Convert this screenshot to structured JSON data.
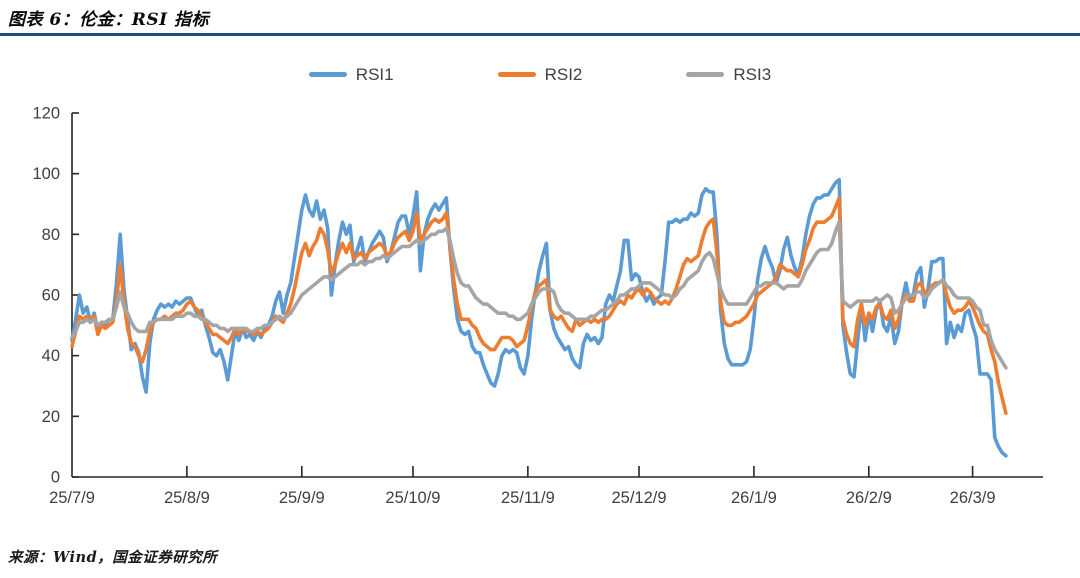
{
  "page": {
    "background": "#ffffff"
  },
  "header": {
    "title": "图表 6：伦金：RSI 指标",
    "divider_color": "#1F4E79"
  },
  "footer": {
    "source": "来源：Wind，国金证券研究所"
  },
  "chart_data": {
    "type": "line",
    "title": "图表 6：伦金：RSI 指标",
    "legend_position": "top",
    "grid": false,
    "axis_color": "#262626",
    "tick_label_color": "#404040",
    "x_axis": {
      "kind": "date-category",
      "tick_labels": [
        "25/7/9",
        "25/8/9",
        "25/9/9",
        "25/10/9",
        "25/11/9",
        "25/12/9",
        "26/1/9",
        "26/2/9",
        "26/3/9"
      ],
      "tick_days": [
        0,
        31,
        62,
        92,
        123,
        153,
        184,
        215,
        243
      ],
      "day_range": [
        0,
        262
      ]
    },
    "y_axis": {
      "min": 0,
      "max": 120,
      "ticks": [
        0,
        20,
        40,
        60,
        80,
        100,
        120
      ]
    },
    "series": [
      {
        "name": "RSI1",
        "color": "#5B9BD5",
        "values": [
          45,
          52,
          60,
          54,
          56,
          51,
          54,
          48,
          51,
          50,
          52,
          52,
          64,
          80,
          62,
          52,
          42,
          44,
          41,
          33,
          28,
          44,
          52,
          55,
          57,
          56,
          57,
          56,
          58,
          57,
          58,
          59,
          59,
          56,
          53,
          55,
          50,
          46,
          41,
          40,
          42,
          38,
          32,
          40,
          48,
          45,
          49,
          46,
          47,
          45,
          48,
          46,
          49,
          50,
          53,
          58,
          61,
          54,
          60,
          64,
          72,
          80,
          88,
          93,
          88,
          86,
          91,
          85,
          88,
          82,
          60,
          70,
          78,
          84,
          80,
          83,
          71,
          75,
          79,
          71,
          74,
          77,
          79,
          81,
          79,
          71,
          74,
          79,
          84,
          86,
          86,
          80,
          86,
          94,
          68,
          80,
          85,
          88,
          90,
          88,
          90,
          92,
          75,
          62,
          52,
          48,
          47,
          48,
          43,
          41,
          41,
          37,
          34,
          31,
          30,
          34,
          40,
          42,
          41,
          42,
          41,
          36,
          34,
          40,
          52,
          61,
          68,
          73,
          77,
          55,
          49,
          46,
          44,
          42,
          43,
          39,
          37,
          36,
          44,
          47,
          45,
          46,
          44,
          46,
          57,
          60,
          58,
          63,
          68,
          78,
          78,
          65,
          67,
          66,
          61,
          58,
          60,
          57,
          59,
          60,
          71,
          84,
          84,
          85,
          84,
          85,
          85,
          87,
          86,
          87,
          93,
          95,
          94,
          94,
          80,
          55,
          44,
          39,
          37,
          37,
          37,
          37,
          38,
          42,
          52,
          65,
          72,
          76,
          72,
          69,
          64,
          68,
          75,
          79,
          73,
          69,
          67,
          72,
          80,
          86,
          90,
          92,
          92,
          93,
          93,
          95,
          97,
          98,
          50,
          41,
          34,
          33,
          45,
          57,
          45,
          54,
          48,
          55,
          58,
          50,
          48,
          53,
          44,
          48,
          58,
          64,
          58,
          60,
          67,
          69,
          56,
          62,
          71,
          71,
          72,
          72,
          44,
          51,
          46,
          50,
          48,
          54,
          55,
          50,
          46,
          34,
          34,
          34,
          32,
          13,
          10,
          8,
          7
        ]
      },
      {
        "name": "RSI2",
        "color": "#ED7D31",
        "values": [
          43,
          48,
          53,
          52,
          53,
          52,
          53,
          47,
          50,
          49,
          50,
          51,
          58,
          70,
          58,
          49,
          44,
          43,
          40,
          38,
          42,
          48,
          51,
          52,
          52,
          53,
          52,
          53,
          54,
          54,
          55,
          57,
          58,
          56,
          55,
          53,
          51,
          49,
          47,
          47,
          46,
          45,
          44,
          46,
          49,
          47,
          49,
          48,
          48,
          47,
          48,
          47,
          48,
          49,
          51,
          53,
          52,
          51,
          54,
          57,
          62,
          68,
          74,
          77,
          73,
          76,
          78,
          82,
          80,
          75,
          67,
          70,
          74,
          77,
          74,
          77,
          72,
          73,
          74,
          72,
          74,
          75,
          76,
          77,
          76,
          73,
          74,
          77,
          79,
          80,
          81,
          78,
          81,
          87,
          78,
          80,
          82,
          84,
          85,
          84,
          85,
          87,
          76,
          65,
          57,
          52,
          52,
          52,
          50,
          49,
          46,
          44,
          43,
          42,
          42,
          44,
          46,
          46,
          46,
          45,
          43,
          44,
          45,
          50,
          56,
          61,
          63,
          64,
          65,
          55,
          53,
          52,
          53,
          51,
          49,
          48,
          52,
          50,
          51,
          52,
          51,
          52,
          51,
          52,
          52,
          53,
          55,
          57,
          58,
          57,
          60,
          59,
          61,
          62,
          60,
          62,
          61,
          59,
          58,
          57,
          58,
          57,
          59,
          62,
          66,
          70,
          72,
          71,
          72,
          73,
          78,
          82,
          84,
          85,
          74,
          58,
          51,
          50,
          50,
          51,
          51,
          52,
          53,
          55,
          57,
          60,
          61,
          62,
          63,
          64,
          66,
          70,
          69,
          68,
          68,
          67,
          66,
          70,
          75,
          78,
          82,
          84,
          84,
          84,
          85,
          86,
          89,
          92,
          52,
          47,
          44,
          43,
          52,
          57,
          50,
          54,
          52,
          56,
          57,
          53,
          52,
          55,
          49,
          52,
          58,
          60,
          58,
          58,
          63,
          64,
          61,
          61,
          63,
          64,
          64,
          65,
          60,
          56,
          54,
          55,
          55,
          56,
          58,
          56,
          53,
          50,
          48,
          47,
          42,
          38,
          31,
          26,
          21
        ]
      },
      {
        "name": "RSI3",
        "color": "#A5A5A5",
        "values": [
          46,
          48,
          51,
          51,
          52,
          51,
          52,
          50,
          51,
          51,
          52,
          52,
          56,
          61,
          56,
          54,
          51,
          49,
          48,
          48,
          48,
          51,
          51,
          52,
          52,
          52,
          52,
          52,
          53,
          53,
          53,
          54,
          54,
          53,
          53,
          52,
          52,
          51,
          50,
          50,
          49,
          49,
          48,
          49,
          49,
          49,
          49,
          49,
          48,
          48,
          49,
          49,
          50,
          50,
          51,
          52,
          53,
          52,
          53,
          54,
          56,
          58,
          60,
          61,
          62,
          63,
          64,
          65,
          66,
          66,
          65,
          66,
          67,
          68,
          69,
          70,
          70,
          70,
          71,
          70,
          71,
          71,
          72,
          72,
          73,
          72,
          73,
          74,
          75,
          76,
          76,
          76,
          77,
          78,
          77,
          78,
          79,
          80,
          80,
          81,
          81,
          82,
          78,
          72,
          67,
          64,
          63,
          63,
          61,
          59,
          58,
          57,
          57,
          56,
          55,
          54,
          54,
          54,
          53,
          53,
          52,
          52,
          53,
          54,
          57,
          59,
          61,
          62,
          62,
          62,
          61,
          57,
          55,
          54,
          54,
          53,
          52,
          52,
          52,
          52,
          53,
          53,
          54,
          55,
          55,
          56,
          57,
          58,
          60,
          60,
          61,
          62,
          62,
          63,
          64,
          64,
          64,
          63,
          62,
          61,
          60,
          60,
          59,
          60,
          62,
          63,
          65,
          66,
          67,
          68,
          71,
          73,
          74,
          72,
          67,
          62,
          59,
          57,
          57,
          57,
          57,
          57,
          57,
          59,
          61,
          63,
          63,
          64,
          64,
          64,
          64,
          63,
          62,
          63,
          63,
          63,
          63,
          65,
          68,
          70,
          72,
          74,
          75,
          75,
          75,
          77,
          81,
          84,
          58,
          57,
          56,
          57,
          58,
          58,
          58,
          58,
          58,
          59,
          58,
          59,
          60,
          59,
          54,
          55,
          57,
          59,
          60,
          60,
          61,
          61,
          59,
          60,
          62,
          63,
          64,
          65,
          63,
          62,
          60,
          59,
          59,
          59,
          59,
          58,
          56,
          55,
          50,
          50,
          45,
          42,
          40,
          38,
          36
        ]
      }
    ]
  }
}
